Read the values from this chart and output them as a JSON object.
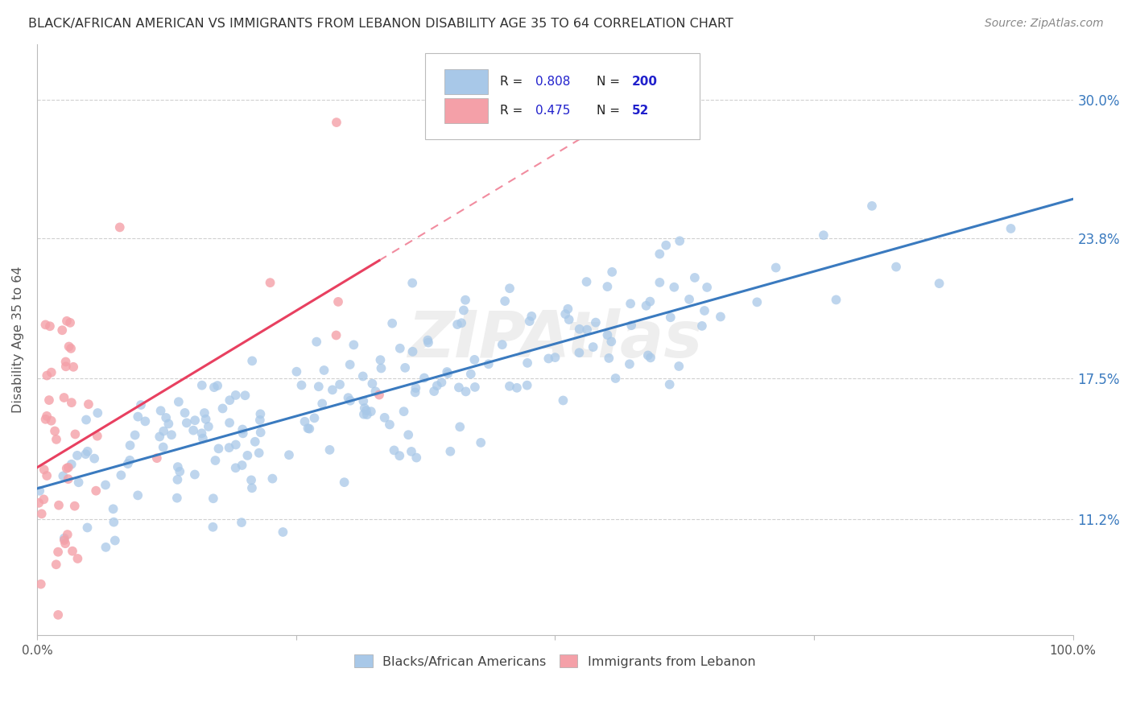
{
  "title": "BLACK/AFRICAN AMERICAN VS IMMIGRANTS FROM LEBANON DISABILITY AGE 35 TO 64 CORRELATION CHART",
  "source": "Source: ZipAtlas.com",
  "ylabel": "Disability Age 35 to 64",
  "ytick_labels": [
    "11.2%",
    "17.5%",
    "23.8%",
    "30.0%"
  ],
  "ytick_values": [
    0.112,
    0.175,
    0.238,
    0.3
  ],
  "xlim": [
    0.0,
    1.0
  ],
  "ylim": [
    0.06,
    0.325
  ],
  "blue_R": 0.808,
  "blue_N": 200,
  "pink_R": 0.475,
  "pink_N": 52,
  "blue_color": "#a8c8e8",
  "pink_color": "#f4a0a8",
  "line_blue": "#3a7abf",
  "line_pink": "#e84060",
  "legend_R_color": "#2020cc",
  "background_color": "#ffffff",
  "grid_color": "#d0d0d0",
  "title_color": "#333333",
  "watermark": "ZIPAtlas",
  "watermark_color": "#c8c8c8"
}
